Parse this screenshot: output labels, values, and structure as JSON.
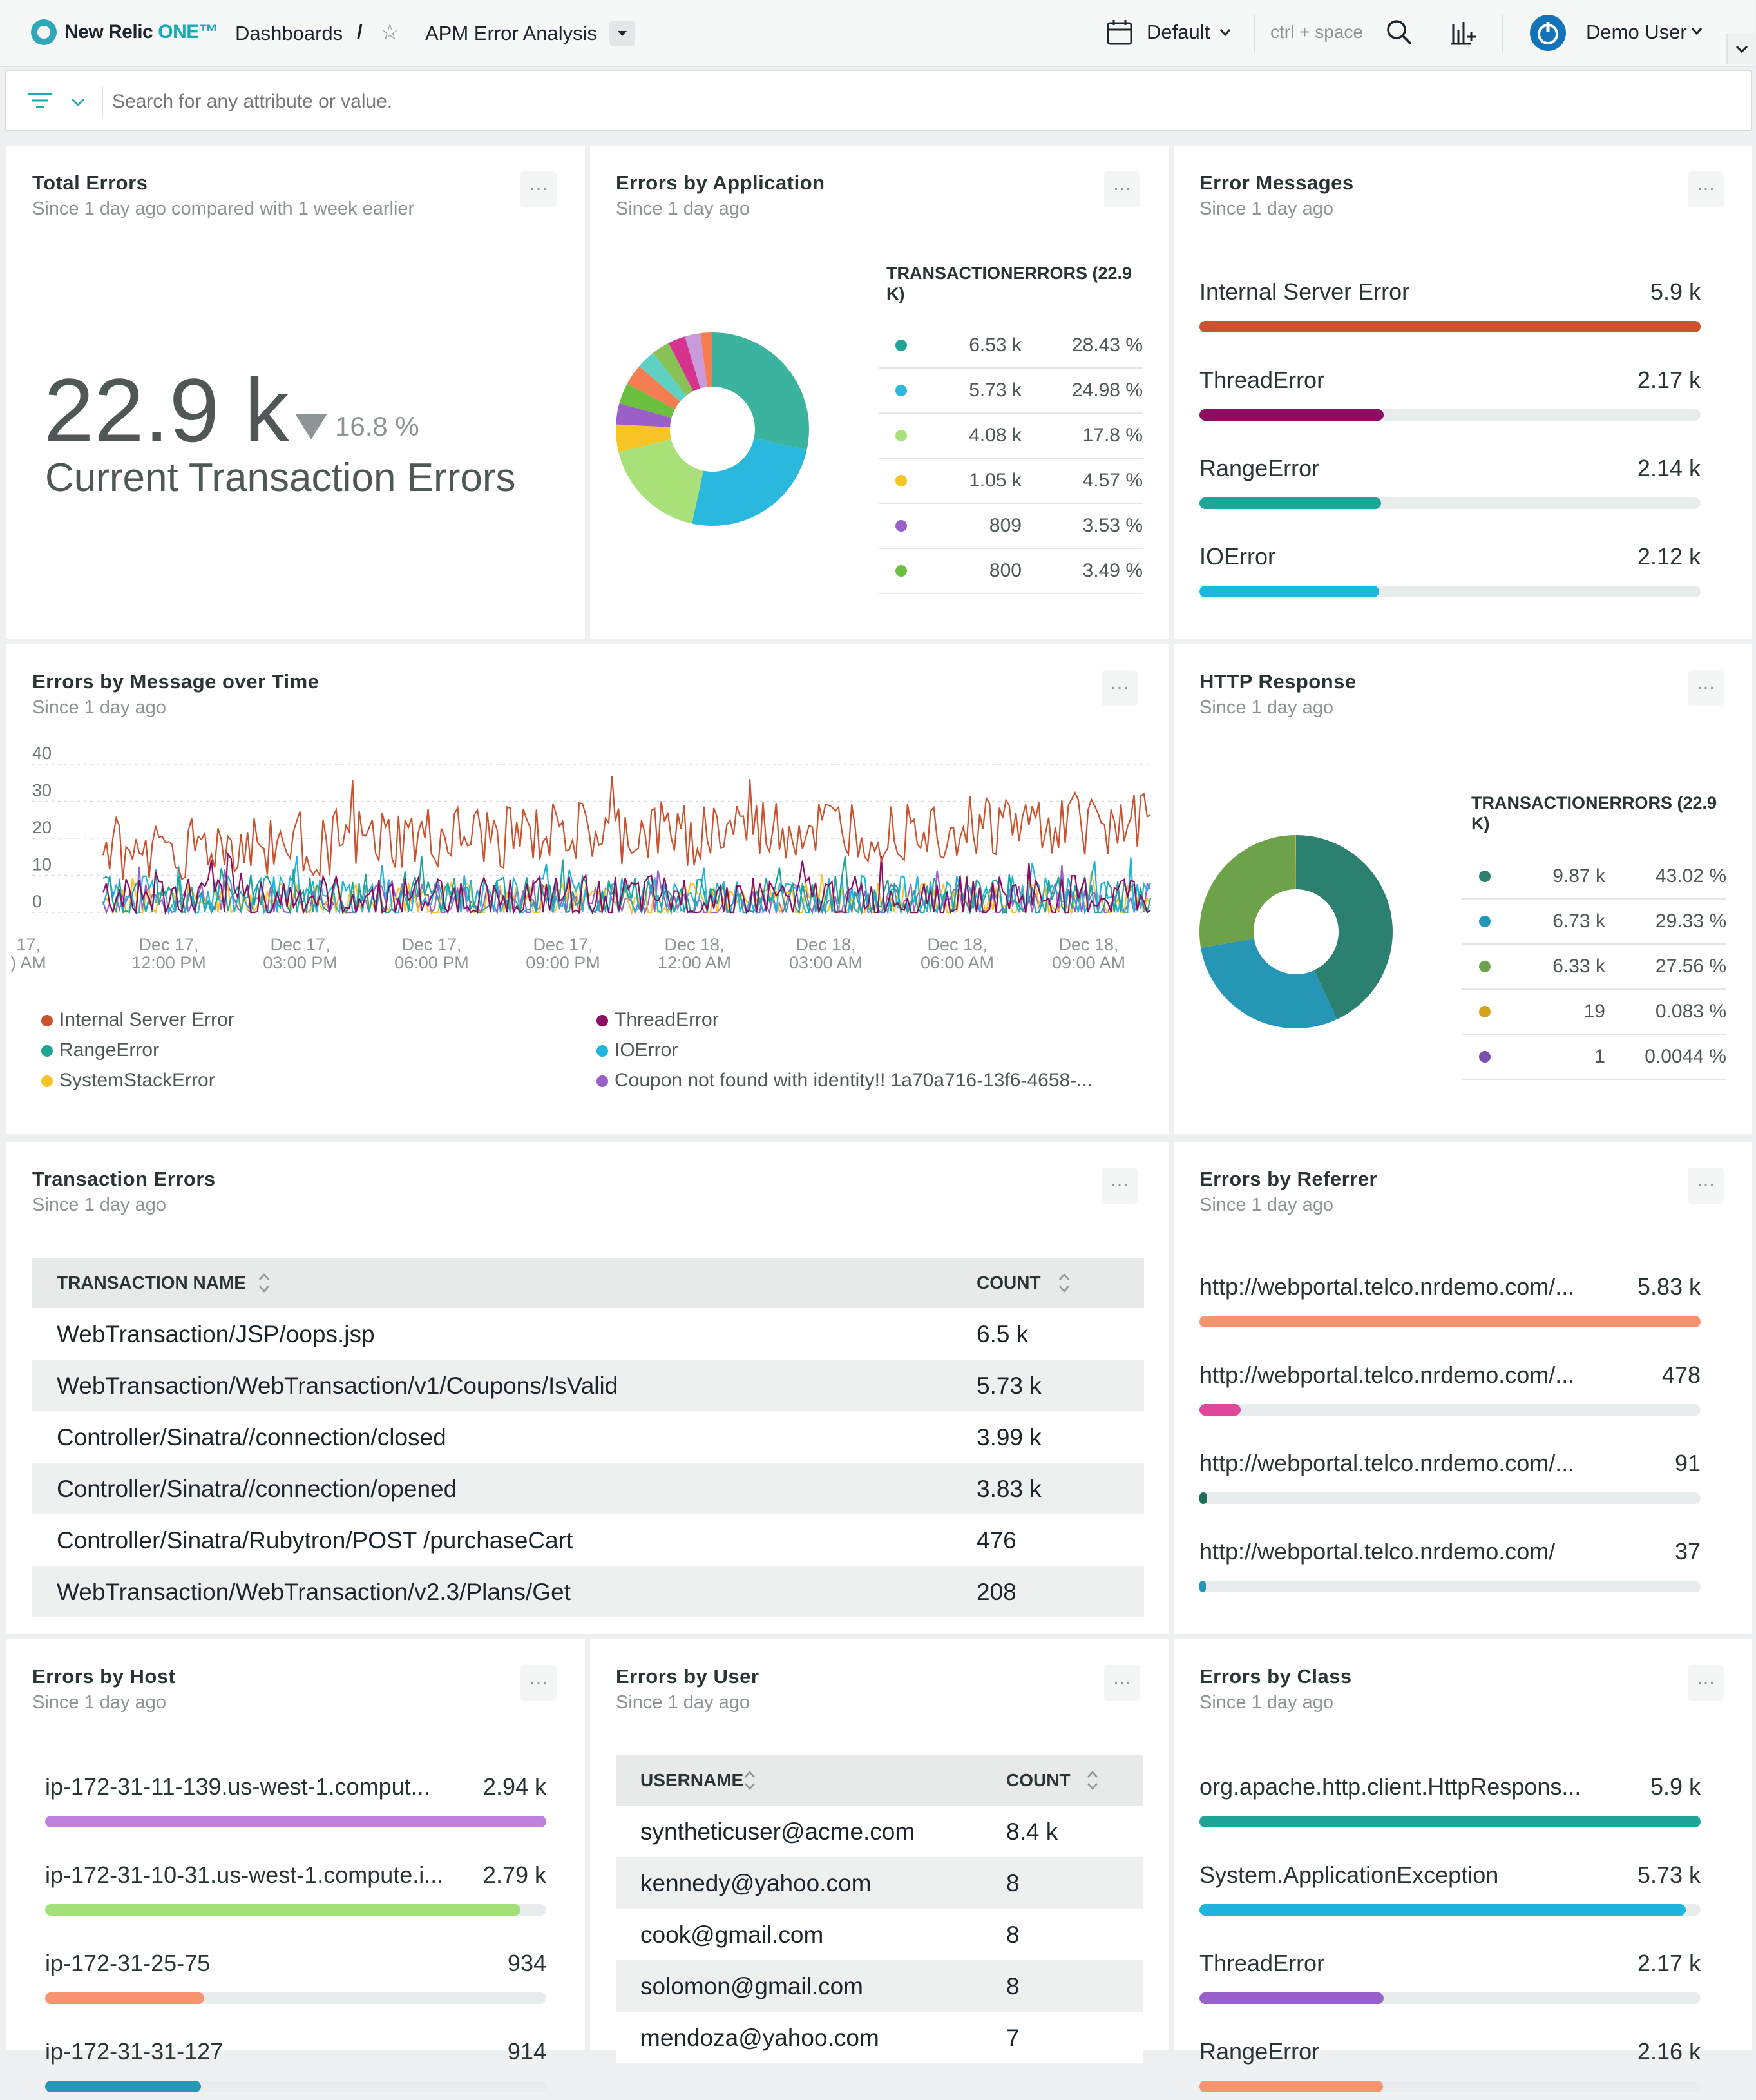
{
  "topbar": {
    "logo_text": "New Relic",
    "logo_one": "ONE™",
    "breadcrumb_root": "Dashboards",
    "breadcrumb_sep": "/",
    "dashboard_title": "APM Error Analysis",
    "account_label": "Default",
    "shortcut_hint": "ctrl + space",
    "user_name": "Demo User"
  },
  "search": {
    "placeholder": "Search for any attribute or value."
  },
  "total_errors": {
    "title": "Total Errors",
    "subtitle": "Since 1 day ago compared with 1 week earlier",
    "value": "22.9 k",
    "delta": "16.8 %",
    "caption": "Current Transaction Errors"
  },
  "errors_by_app": {
    "title": "Errors by Application",
    "subtitle": "Since 1 day ago",
    "table_header": "TRANSACTIONERRORS (22.9 K)",
    "rows": [
      {
        "color": "#1fa598",
        "value": "6.53 k",
        "pct": "28.43 %"
      },
      {
        "color": "#2ab8dc",
        "value": "5.73 k",
        "pct": "24.98 %"
      },
      {
        "color": "#a9e07a",
        "value": "4.08 k",
        "pct": "17.8 %"
      },
      {
        "color": "#f7c325",
        "value": "1.05 k",
        "pct": "4.57 %"
      },
      {
        "color": "#9b5fc9",
        "value": "809",
        "pct": "3.53 %"
      },
      {
        "color": "#6cbf3f",
        "value": "800",
        "pct": "3.49 %"
      }
    ],
    "chart_data": {
      "type": "pie",
      "values": [
        28.43,
        24.98,
        17.8,
        4.57,
        3.53,
        3.49,
        3.5,
        3.2,
        3.0,
        2.9,
        2.6,
        2.0
      ],
      "colors": [
        "#3bb39e",
        "#2ab8dc",
        "#a9e07a",
        "#f7c325",
        "#9b5fc9",
        "#6cbf3f",
        "#f47e52",
        "#5fd0c4",
        "#89c157",
        "#d6338f",
        "#c99bdd",
        "#f47e52"
      ]
    }
  },
  "error_messages": {
    "title": "Error Messages",
    "subtitle": "Since 1 day ago",
    "items": [
      {
        "label": "Internal Server Error",
        "value": "5.9 k",
        "fraction": 1.0,
        "color": "#c9522f"
      },
      {
        "label": "ThreadError",
        "value": "2.17 k",
        "fraction": 0.368,
        "color": "#8c0e61"
      },
      {
        "label": "RangeError",
        "value": "2.14 k",
        "fraction": 0.363,
        "color": "#1fa598"
      },
      {
        "label": "IOError",
        "value": "2.12 k",
        "fraction": 0.359,
        "color": "#1fb5dc"
      }
    ]
  },
  "errors_over_time": {
    "title": "Errors by Message over Time",
    "subtitle": "Since 1 day ago",
    "y_ticks": [
      "40",
      "30",
      "20",
      "10",
      "0"
    ],
    "x_ticks": [
      {
        "line1": "17,",
        "line2": ") AM"
      },
      {
        "line1": "Dec 17,",
        "line2": "12:00 PM"
      },
      {
        "line1": "Dec 17,",
        "line2": "03:00 PM"
      },
      {
        "line1": "Dec 17,",
        "line2": "06:00 PM"
      },
      {
        "line1": "Dec 17,",
        "line2": "09:00 PM"
      },
      {
        "line1": "Dec 18,",
        "line2": "12:00 AM"
      },
      {
        "line1": "Dec 18,",
        "line2": "03:00 AM"
      },
      {
        "line1": "Dec 18,",
        "line2": "06:00 AM"
      },
      {
        "line1": "Dec 18,",
        "line2": "09:00 AM"
      }
    ],
    "legend": [
      {
        "name": "Internal Server Error",
        "color": "#c9522f"
      },
      {
        "name": "ThreadError",
        "color": "#8c0e61"
      },
      {
        "name": "RangeError",
        "color": "#1fa598"
      },
      {
        "name": "IOError",
        "color": "#1fb5dc"
      },
      {
        "name": "SystemStackError",
        "color": "#f7c325"
      },
      {
        "name": "Coupon not found with identity!! 1a70a716-13f6-4658-...",
        "color": "#9b5fc9"
      }
    ],
    "chart_data": {
      "type": "line",
      "ylim": [
        0,
        40
      ],
      "series": [
        {
          "name": "Internal Server Error",
          "color": "#c9522f",
          "base": 17,
          "amp": 9
        },
        {
          "name": "ThreadError",
          "color": "#8c0e61",
          "base": 4,
          "amp": 6
        },
        {
          "name": "RangeError",
          "color": "#1fa598",
          "base": 4,
          "amp": 6
        },
        {
          "name": "IOError",
          "color": "#1fb5dc",
          "base": 4,
          "amp": 6
        },
        {
          "name": "SystemStackError",
          "color": "#f7c325",
          "base": 3,
          "amp": 5
        },
        {
          "name": "Coupon not found with identity!! 1a70a716-13f6-4658-...",
          "color": "#9b5fc9",
          "base": 3,
          "amp": 5
        }
      ]
    }
  },
  "http_response": {
    "title": "HTTP Response",
    "subtitle": "Since 1 day ago",
    "table_header": "TRANSACTIONERRORS (22.9 K)",
    "rows": [
      {
        "color": "#2b8070",
        "value": "9.87 k",
        "pct": "43.02 %"
      },
      {
        "color": "#2596b5",
        "value": "6.73 k",
        "pct": "29.33 %"
      },
      {
        "color": "#6ea24a",
        "value": "6.33 k",
        "pct": "27.56 %"
      },
      {
        "color": "#d6a31f",
        "value": "19",
        "pct": "0.083 %"
      },
      {
        "color": "#7d4fb2",
        "value": "1",
        "pct": "0.0044 %"
      }
    ],
    "chart_data": {
      "type": "pie",
      "values": [
        43.02,
        29.33,
        27.56,
        0.083,
        0.0044
      ],
      "colors": [
        "#2b8070",
        "#2596b5",
        "#6ea24a",
        "#d6a31f",
        "#7d4fb2"
      ]
    }
  },
  "transaction_errors": {
    "title": "Transaction Errors",
    "subtitle": "Since 1 day ago",
    "col_name": "TRANSACTION NAME",
    "col_count": "COUNT",
    "rows": [
      {
        "name": "WebTransaction/JSP/oops.jsp",
        "count": "6.5 k"
      },
      {
        "name": "WebTransaction/WebTransaction/v1/Coupons/IsValid",
        "count": "5.73 k"
      },
      {
        "name": "Controller/Sinatra//connection/closed",
        "count": "3.99 k"
      },
      {
        "name": "Controller/Sinatra//connection/opened",
        "count": "3.83 k"
      },
      {
        "name": "Controller/Sinatra/Rubytron/POST /purchaseCart",
        "count": "476"
      },
      {
        "name": "WebTransaction/WebTransaction/v2.3/Plans/Get",
        "count": "208"
      }
    ]
  },
  "errors_by_referrer": {
    "title": "Errors by Referrer",
    "subtitle": "Since 1 day ago",
    "items": [
      {
        "label": "http://webportal.telco.nrdemo.com/...",
        "value": "5.83 k",
        "fraction": 1.0,
        "color": "#f89370"
      },
      {
        "label": "http://webportal.telco.nrdemo.com/...",
        "value": "478",
        "fraction": 0.082,
        "color": "#e0479a"
      },
      {
        "label": "http://webportal.telco.nrdemo.com/...",
        "value": "91",
        "fraction": 0.016,
        "color": "#1d6f59"
      },
      {
        "label": "http://webportal.telco.nrdemo.com/",
        "value": "37",
        "fraction": 0.006,
        "color": "#2596b5"
      }
    ]
  },
  "errors_by_host": {
    "title": "Errors by Host",
    "subtitle": "Since 1 day ago",
    "items": [
      {
        "label": "ip-172-31-11-139.us-west-1.comput...",
        "value": "2.94 k",
        "fraction": 1.0,
        "color": "#c080dd"
      },
      {
        "label": "ip-172-31-10-31.us-west-1.compute.i...",
        "value": "2.79 k",
        "fraction": 0.949,
        "color": "#a3e07a"
      },
      {
        "label": "ip-172-31-25-75",
        "value": "934",
        "fraction": 0.318,
        "color": "#f89370"
      },
      {
        "label": "ip-172-31-31-127",
        "value": "914",
        "fraction": 0.311,
        "color": "#2596b5"
      }
    ]
  },
  "errors_by_user": {
    "title": "Errors by User",
    "subtitle": "Since 1 day ago",
    "col_name": "USERNAME",
    "col_count": "COUNT",
    "rows": [
      {
        "name": "syntheticuser@acme.com",
        "count": "8.4 k"
      },
      {
        "name": "kennedy@yahoo.com",
        "count": "8"
      },
      {
        "name": "cook@gmail.com",
        "count": "8"
      },
      {
        "name": "solomon@gmail.com",
        "count": "8"
      },
      {
        "name": "mendoza@yahoo.com",
        "count": "7"
      }
    ]
  },
  "errors_by_class": {
    "title": "Errors by Class",
    "subtitle": "Since 1 day ago",
    "items": [
      {
        "label": "org.apache.http.client.HttpRespons...",
        "value": "5.9 k",
        "fraction": 1.0,
        "color": "#1fa598"
      },
      {
        "label": "System.ApplicationException",
        "value": "5.73 k",
        "fraction": 0.971,
        "color": "#1fb5dc"
      },
      {
        "label": "ThreadError",
        "value": "2.17 k",
        "fraction": 0.368,
        "color": "#9b5fc9"
      },
      {
        "label": "RangeError",
        "value": "2.16 k",
        "fraction": 0.366,
        "color": "#f89370"
      }
    ]
  }
}
